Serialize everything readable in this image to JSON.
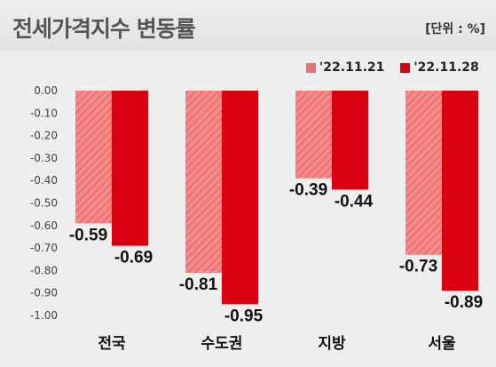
{
  "chart_data": {
    "type": "bar",
    "title": "전세가격지수 변동률",
    "unit_label": "[단위 : %]",
    "categories": [
      "전국",
      "수도권",
      "지방",
      "서울"
    ],
    "series": [
      {
        "name": "'22.11.21",
        "values": [
          -0.59,
          -0.81,
          -0.39,
          -0.73
        ],
        "color": "#f07070",
        "pattern": "hatched"
      },
      {
        "name": "'22.11.28",
        "values": [
          -0.69,
          -0.95,
          -0.44,
          -0.89
        ],
        "color": "#d9000f",
        "pattern": "solid"
      }
    ],
    "ylim": [
      -1.0,
      0.0
    ],
    "yticks": [
      "0.00",
      "-0.10",
      "-0.20",
      "-0.30",
      "-0.40",
      "-0.50",
      "-0.60",
      "-0.70",
      "-0.80",
      "-0.90",
      "-1.00"
    ],
    "value_labels": [
      [
        "-0.59",
        "-0.81",
        "-0.39",
        "-0.73"
      ],
      [
        "-0.69",
        "-0.95",
        "-0.44",
        "-0.89"
      ]
    ],
    "grid": false,
    "legend_position": "top-right",
    "background": "#eeeeee"
  }
}
